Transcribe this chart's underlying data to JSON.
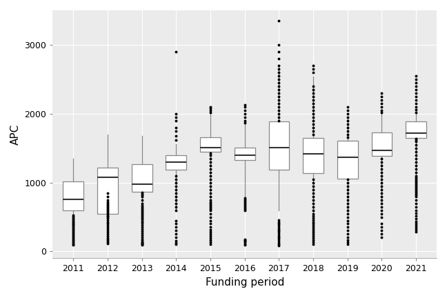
{
  "title": "",
  "xlabel": "Funding period",
  "ylabel": "APC",
  "background_color": "#ffffff",
  "panel_color": "#ebebeb",
  "grid_color": "#ffffff",
  "ylim": [
    -100,
    3500
  ],
  "yticks": [
    0,
    1000,
    2000,
    3000
  ],
  "years": [
    2011,
    2012,
    2013,
    2014,
    2015,
    2016,
    2017,
    2018,
    2019,
    2020,
    2021
  ],
  "boxes": {
    "2011": {
      "q1": 600,
      "median": 760,
      "q3": 1020,
      "whislo": 330,
      "whishi": 1350,
      "fliers": [
        90,
        100,
        120,
        140,
        160,
        180,
        200,
        220,
        240,
        260,
        280,
        300,
        320,
        340,
        360,
        380,
        390,
        410,
        430,
        450,
        470,
        490,
        510,
        530
      ]
    },
    "2012": {
      "q1": 550,
      "median": 1080,
      "q3": 1220,
      "whislo": 440,
      "whishi": 1700,
      "fliers": [
        110,
        130,
        150,
        170,
        190,
        220,
        250,
        280,
        310,
        340,
        370,
        400,
        430,
        460,
        490,
        510,
        520,
        540,
        560,
        580,
        600,
        620,
        640,
        660,
        680,
        700,
        720,
        750,
        800,
        850
      ]
    },
    "2013": {
      "q1": 870,
      "median": 980,
      "q3": 1270,
      "whislo": 570,
      "whishi": 1680,
      "fliers": [
        90,
        100,
        110,
        120,
        130,
        150,
        170,
        200,
        230,
        260,
        290,
        320,
        350,
        380,
        410,
        440,
        470,
        490,
        510,
        530,
        550,
        570,
        590,
        610,
        630,
        650,
        670,
        700,
        750,
        800,
        820,
        840,
        860
      ]
    },
    "2014": {
      "q1": 1185,
      "median": 1300,
      "q3": 1395,
      "whislo": 590,
      "whishi": 1560,
      "fliers": [
        100,
        120,
        150,
        200,
        250,
        300,
        350,
        400,
        450,
        600,
        650,
        700,
        750,
        800,
        850,
        900,
        950,
        1000,
        1050,
        1100,
        1620,
        1680,
        1750,
        1800,
        1900,
        1950,
        2000,
        2900
      ]
    },
    "2015": {
      "q1": 1450,
      "median": 1510,
      "q3": 1660,
      "whislo": 620,
      "whishi": 2000,
      "fliers": [
        100,
        130,
        160,
        190,
        220,
        250,
        280,
        310,
        350,
        400,
        450,
        500,
        550,
        600,
        620,
        640,
        660,
        680,
        700,
        720,
        750,
        800,
        850,
        900,
        950,
        1000,
        1050,
        1100,
        1150,
        1200,
        1250,
        1300,
        1350,
        1400,
        1430,
        2020,
        2050,
        2080,
        2100
      ]
    },
    "2016": {
      "q1": 1330,
      "median": 1400,
      "q3": 1510,
      "whislo": 800,
      "whishi": 1850,
      "fliers": [
        90,
        100,
        120,
        140,
        150,
        160,
        170,
        600,
        620,
        640,
        660,
        680,
        700,
        720,
        740,
        760,
        780,
        1870,
        1900,
        1950,
        2000,
        2050,
        2100,
        2130
      ]
    },
    "2017": {
      "q1": 1190,
      "median": 1510,
      "q3": 1890,
      "whislo": 600,
      "whishi": 2700,
      "fliers": [
        80,
        100,
        120,
        150,
        180,
        200,
        220,
        250,
        280,
        300,
        320,
        350,
        380,
        400,
        430,
        460,
        1900,
        1950,
        2000,
        2050,
        2100,
        2150,
        2200,
        2250,
        2300,
        2350,
        2400,
        2450,
        2500,
        2550,
        2600,
        2650,
        2700,
        2800,
        2900,
        3000,
        3350
      ]
    },
    "2018": {
      "q1": 1140,
      "median": 1420,
      "q3": 1650,
      "whislo": 500,
      "whishi": 2540,
      "fliers": [
        100,
        130,
        160,
        190,
        220,
        250,
        280,
        310,
        340,
        370,
        400,
        430,
        460,
        490,
        520,
        550,
        600,
        650,
        700,
        750,
        800,
        850,
        900,
        950,
        1000,
        1050,
        1700,
        1750,
        1800,
        1850,
        1900,
        1950,
        2000,
        2050,
        2100,
        2150,
        2200,
        2250,
        2300,
        2350,
        2400,
        2600,
        2650,
        2700
      ]
    },
    "2019": {
      "q1": 1060,
      "median": 1370,
      "q3": 1610,
      "whislo": 550,
      "whishi": 1960,
      "fliers": [
        100,
        130,
        160,
        200,
        250,
        300,
        350,
        400,
        450,
        500,
        550,
        600,
        650,
        700,
        750,
        800,
        850,
        900,
        950,
        1000,
        1050,
        1660,
        1700,
        1750,
        1800,
        1850,
        1900,
        1950,
        2000,
        2050,
        2100
      ]
    },
    "2020": {
      "q1": 1390,
      "median": 1470,
      "q3": 1730,
      "whislo": 690,
      "whishi": 2000,
      "fliers": [
        200,
        250,
        300,
        350,
        400,
        500,
        550,
        600,
        650,
        700,
        750,
        800,
        850,
        900,
        950,
        1000,
        1050,
        1100,
        1150,
        1200,
        1250,
        1300,
        1350,
        2020,
        2050,
        2100,
        2150,
        2200,
        2250,
        2300
      ]
    },
    "2021": {
      "q1": 1650,
      "median": 1720,
      "q3": 1890,
      "whislo": 820,
      "whishi": 2000,
      "fliers": [
        280,
        310,
        340,
        370,
        400,
        440,
        480,
        520,
        560,
        600,
        650,
        700,
        750,
        800,
        820,
        840,
        860,
        880,
        900,
        920,
        940,
        960,
        980,
        1000,
        1020,
        1040,
        1060,
        1080,
        1100,
        1150,
        1200,
        1250,
        1300,
        1350,
        1400,
        1450,
        1500,
        1550,
        1600,
        1620,
        1640,
        2020,
        2060,
        2100,
        2150,
        2200,
        2250,
        2300,
        2350,
        2400,
        2450,
        2500,
        2550
      ]
    }
  },
  "box_width": 0.6,
  "box_color": "white",
  "box_edgecolor": "#888888",
  "median_color": "#333333",
  "whisker_color": "#888888",
  "flier_color": "black",
  "flier_size": 1.8
}
